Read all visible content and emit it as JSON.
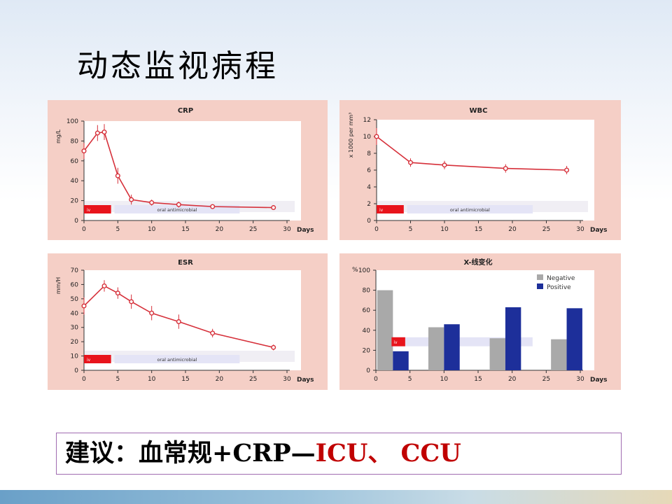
{
  "slide_title": "动态监视病程",
  "recommendation": {
    "prefix": "建议：血常规+CRP—",
    "highlight": "ICU、 CCU"
  },
  "colors": {
    "panel_bg": "#f5cfc6",
    "plot_bg": "#ffffff",
    "line": "#d6303a",
    "iv_box": "#e8141c",
    "oral_box": "#e4e4f6",
    "negative": "#a9a9a9",
    "positive": "#1d2f9a",
    "highlight_text": "#c00000"
  },
  "chart_data": [
    {
      "id": "crp",
      "type": "line",
      "title": "CRP",
      "ylabel": "mg/L",
      "xlabel": "Days",
      "xlim": [
        0,
        30
      ],
      "ylim": [
        0,
        100
      ],
      "xticks": [
        0,
        5,
        10,
        15,
        20,
        25,
        30
      ],
      "yticks": [
        0,
        20,
        40,
        60,
        80,
        100
      ],
      "points": [
        [
          0,
          70
        ],
        [
          2,
          88
        ],
        [
          3,
          89
        ],
        [
          5,
          45
        ],
        [
          7,
          21
        ],
        [
          10,
          18
        ],
        [
          14,
          16
        ],
        [
          19,
          14
        ],
        [
          28,
          13
        ]
      ],
      "error": [
        8,
        8,
        8,
        8,
        5,
        3,
        3,
        1,
        1
      ],
      "iv_label": "iv",
      "oral_label": "oral antimicrobial"
    },
    {
      "id": "wbc",
      "type": "line",
      "title": "WBC",
      "ylabel": "x 1000 per mm³",
      "xlabel": "Days",
      "xlim": [
        0,
        30
      ],
      "ylim": [
        0,
        12
      ],
      "xticks": [
        0,
        5,
        10,
        15,
        20,
        25,
        30
      ],
      "yticks": [
        0,
        2,
        4,
        6,
        8,
        10,
        12
      ],
      "points": [
        [
          0,
          10
        ],
        [
          5,
          6.9
        ],
        [
          10,
          6.6
        ],
        [
          19,
          6.2
        ],
        [
          28,
          6.0
        ]
      ],
      "error": [
        1.0,
        0.5,
        0.5,
        0.5,
        0.5
      ],
      "iv_label": "iv",
      "oral_label": "oral antimicrobial"
    },
    {
      "id": "esr",
      "type": "line",
      "title": "ESR",
      "ylabel": "mm/H",
      "xlabel": "Days",
      "xlim": [
        0,
        30
      ],
      "ylim": [
        0,
        70
      ],
      "xticks": [
        0,
        5,
        10,
        15,
        20,
        25,
        30
      ],
      "yticks": [
        0,
        10,
        20,
        30,
        40,
        50,
        60,
        70
      ],
      "points": [
        [
          0,
          45
        ],
        [
          3,
          59
        ],
        [
          5,
          54
        ],
        [
          7,
          48
        ],
        [
          10,
          40
        ],
        [
          14,
          34
        ],
        [
          19,
          26
        ],
        [
          28,
          16
        ]
      ],
      "error": [
        6,
        4,
        4,
        5,
        5,
        5,
        3,
        2
      ],
      "iv_label": "iv",
      "oral_label": "oral antimicrobial"
    },
    {
      "id": "xray",
      "type": "bar",
      "title": "X-线变化",
      "ylabel": "%",
      "xlabel": "Days",
      "xlim": [
        0,
        30
      ],
      "ylim": [
        0,
        100
      ],
      "xticks": [
        0,
        5,
        10,
        15,
        20,
        25,
        30
      ],
      "yticks": [
        0,
        20,
        40,
        60,
        80,
        100
      ],
      "groups": [
        {
          "negative": 80,
          "positive": 19
        },
        {
          "negative": 43,
          "positive": 46
        },
        {
          "negative": 32,
          "positive": 63
        },
        {
          "negative": 31,
          "positive": 62
        }
      ],
      "series": [
        {
          "name": "Negative",
          "color": "#a9a9a9"
        },
        {
          "name": "Positive",
          "color": "#1d2f9a"
        }
      ],
      "iv_label": "iv"
    }
  ]
}
